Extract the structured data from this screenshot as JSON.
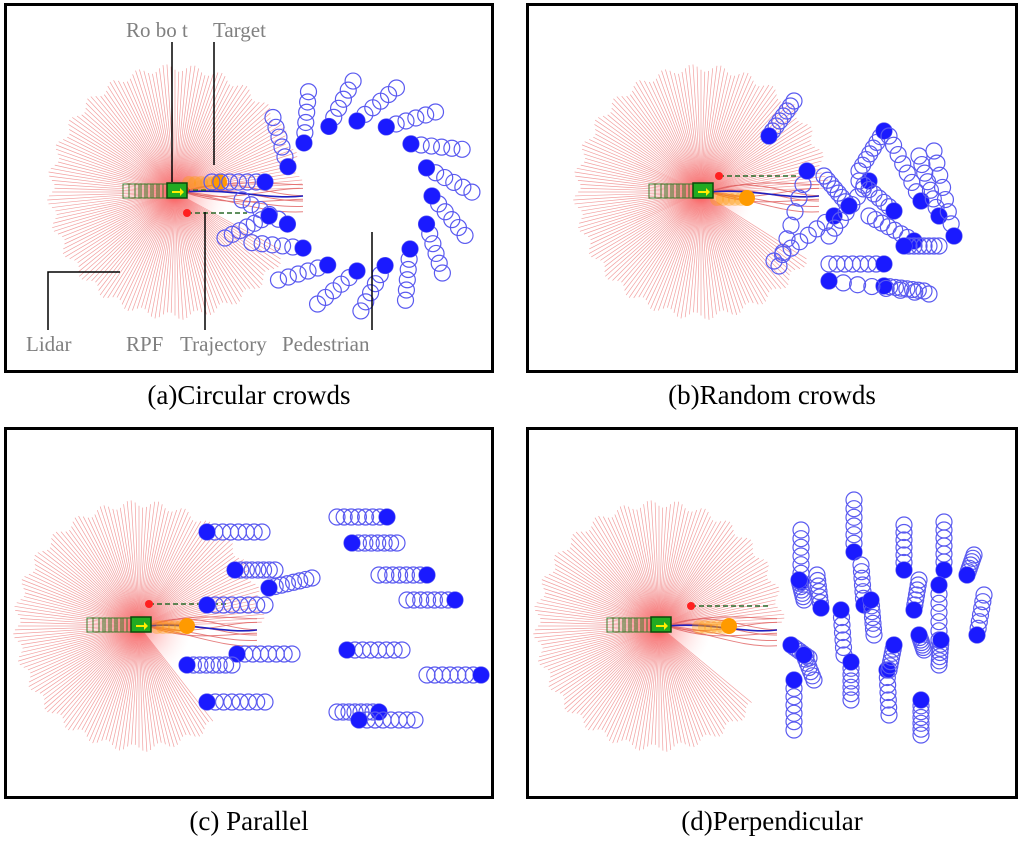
{
  "panels": [
    {
      "caption": "(a)Circular crowds",
      "scenario": "circular"
    },
    {
      "caption": "(b)Random crowds",
      "scenario": "random"
    },
    {
      "caption": "(c) Parallel",
      "scenario": "parallel"
    },
    {
      "caption": "(d)Perpendicular",
      "scenario": "perpendicular"
    }
  ],
  "annotations": {
    "robot": "Ro bo t",
    "target": "Target",
    "lidar": "Lidar",
    "rpf": "RPF",
    "trajectory": "Trajectory",
    "pedestrian": "Pedestrian"
  },
  "colors": {
    "lidar": "#f2a0a0",
    "pedestrian": "#1a1aff",
    "pedestrian_trail": "#5a5af0",
    "robot": "#22aa22",
    "robot_trail": "#3c7a2a",
    "target": "#ff9a00",
    "rpf_point": "#ff2020",
    "trajectory": "#2020c0",
    "annotation": "#808080"
  }
}
